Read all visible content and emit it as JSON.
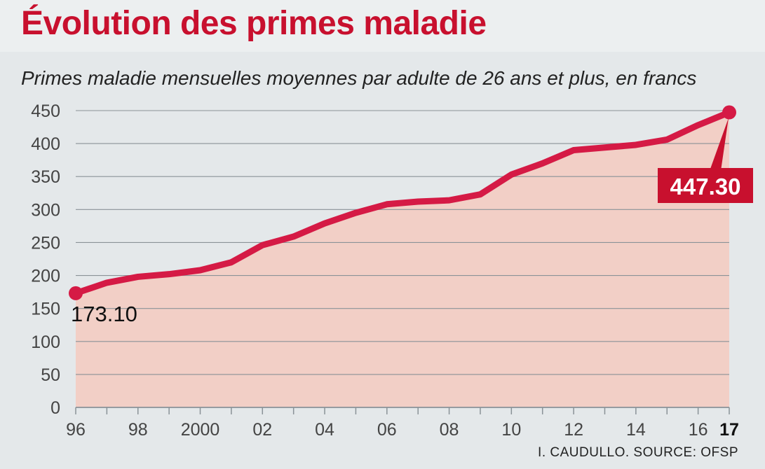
{
  "title": "Évolution des primes maladie",
  "subtitle": "Primes maladie mensuelles moyennes par adulte de 26 ans et plus, en francs",
  "source": "I. CAUDULLO. SOURCE: OFSP",
  "colors": {
    "accent": "#c8102e",
    "line": "#d51a45",
    "area": "#f2cfc6",
    "grid": "#8a9297",
    "background": "#e4e8ea"
  },
  "chart_data": {
    "type": "area",
    "title": "Évolution des primes maladie",
    "subtitle": "Primes maladie mensuelles moyennes par adulte de 26 ans et plus, en francs",
    "xlabel": "",
    "ylabel": "",
    "x": [
      1996,
      1997,
      1998,
      1999,
      2000,
      2001,
      2002,
      2003,
      2004,
      2005,
      2006,
      2007,
      2008,
      2009,
      2010,
      2011,
      2012,
      2013,
      2014,
      2015,
      2016,
      2017
    ],
    "values": [
      173.1,
      189,
      198,
      202,
      208,
      220,
      246,
      259,
      279,
      295,
      308,
      312,
      314,
      323,
      353,
      370,
      390,
      394,
      398,
      406,
      428,
      447.3
    ],
    "ylim": [
      0,
      450
    ],
    "yticks": [
      0,
      50,
      100,
      150,
      200,
      250,
      300,
      350,
      400,
      450
    ],
    "xticks": [
      {
        "value": 1996,
        "label": "96",
        "bold": false
      },
      {
        "value": 1998,
        "label": "98",
        "bold": false
      },
      {
        "value": 2000,
        "label": "2000",
        "bold": false
      },
      {
        "value": 2002,
        "label": "02",
        "bold": false
      },
      {
        "value": 2004,
        "label": "04",
        "bold": false
      },
      {
        "value": 2006,
        "label": "06",
        "bold": false
      },
      {
        "value": 2008,
        "label": "08",
        "bold": false
      },
      {
        "value": 2010,
        "label": "10",
        "bold": false
      },
      {
        "value": 2012,
        "label": "12",
        "bold": false
      },
      {
        "value": 2014,
        "label": "14",
        "bold": false
      },
      {
        "value": 2016,
        "label": "16",
        "bold": false
      },
      {
        "value": 2017,
        "label": "17",
        "bold": true
      }
    ],
    "annotations": {
      "start": {
        "x": 1996,
        "value": 173.1,
        "label": "173.10"
      },
      "end": {
        "x": 2017,
        "value": 447.3,
        "label": "447.30"
      }
    },
    "grid": true
  }
}
